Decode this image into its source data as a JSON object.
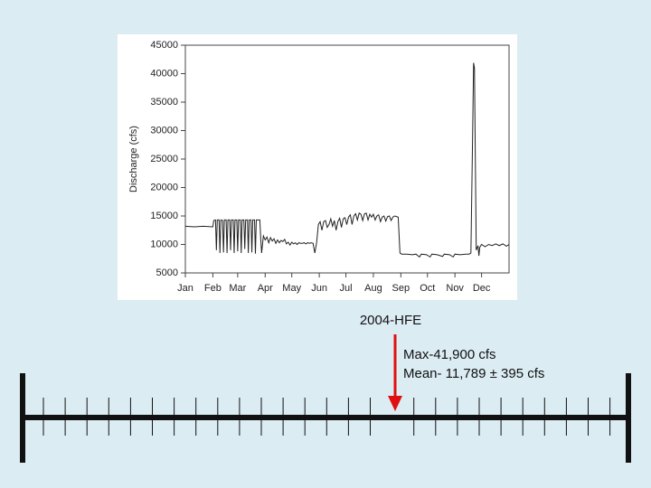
{
  "chart_data": {
    "type": "line",
    "y_label": "Discharge (cfs)",
    "xlim": [
      0,
      365
    ],
    "xticks": [
      {
        "value": 0,
        "label": "Jan"
      },
      {
        "value": 31,
        "label": "Feb"
      },
      {
        "value": 59,
        "label": "Mar"
      },
      {
        "value": 90,
        "label": "Apr"
      },
      {
        "value": 120,
        "label": "May"
      },
      {
        "value": 151,
        "label": "Jun"
      },
      {
        "value": 181,
        "label": "Jul"
      },
      {
        "value": 212,
        "label": "Aug"
      },
      {
        "value": 243,
        "label": "Sep"
      },
      {
        "value": 273,
        "label": "Oct"
      },
      {
        "value": 304,
        "label": "Nov"
      },
      {
        "value": 334,
        "label": "Dec"
      }
    ],
    "ylim": [
      5000,
      45000
    ],
    "yticks": [
      5000,
      10000,
      15000,
      20000,
      25000,
      30000,
      35000,
      40000,
      45000
    ],
    "x": [
      0,
      10,
      20,
      31,
      32,
      34,
      35,
      36,
      38,
      39,
      40,
      42,
      43,
      44,
      46,
      47,
      48,
      50,
      51,
      52,
      54,
      55,
      56,
      58,
      59,
      60,
      62,
      63,
      64,
      66,
      67,
      68,
      70,
      71,
      72,
      74,
      75,
      76,
      78,
      79,
      80,
      82,
      84,
      85,
      86,
      88,
      90,
      92,
      94,
      96,
      98,
      100,
      102,
      104,
      106,
      108,
      110,
      112,
      114,
      116,
      118,
      120,
      122,
      124,
      126,
      128,
      130,
      132,
      134,
      136,
      138,
      140,
      142,
      144,
      146,
      148,
      150,
      152,
      154,
      156,
      158,
      160,
      162,
      164,
      166,
      168,
      170,
      172,
      174,
      176,
      178,
      180,
      182,
      184,
      186,
      188,
      190,
      192,
      194,
      196,
      198,
      200,
      202,
      204,
      206,
      208,
      210,
      212,
      214,
      216,
      218,
      220,
      222,
      224,
      226,
      228,
      230,
      232,
      234,
      236,
      238,
      240,
      242,
      244,
      250,
      256,
      260,
      264,
      266,
      272,
      276,
      278,
      284,
      290,
      292,
      298,
      302,
      304,
      310,
      316,
      320,
      322,
      324,
      325,
      326,
      327,
      328,
      330,
      331,
      332,
      334,
      338,
      342,
      346,
      350,
      354,
      358,
      362,
      365
    ],
    "series": [
      {
        "color": "#222222",
        "values": [
          13200,
          13100,
          13200,
          13100,
          14200,
          14300,
          9000,
          14300,
          14300,
          8500,
          14300,
          14200,
          8600,
          14300,
          14300,
          8500,
          14300,
          14300,
          9000,
          14300,
          14300,
          8500,
          14300,
          14300,
          8800,
          14300,
          14300,
          8500,
          14300,
          14300,
          9200,
          14300,
          14300,
          8500,
          14300,
          14300,
          8600,
          14300,
          14300,
          8400,
          14300,
          14300,
          14300,
          11000,
          8500,
          11500,
          10800,
          11300,
          10300,
          11200,
          10600,
          11000,
          10200,
          10800,
          10300,
          10700,
          10500,
          10900,
          10100,
          10400,
          9900,
          10400,
          10100,
          10300,
          10000,
          10300,
          10200,
          10200,
          10300,
          10100,
          10300,
          10200,
          10300,
          10200,
          8500,
          10300,
          13500,
          14000,
          12500,
          14000,
          14200,
          13000,
          13500,
          14500,
          13200,
          14200,
          12500,
          14000,
          14600,
          13000,
          14500,
          14700,
          13500,
          14800,
          15200,
          13500,
          15000,
          15400,
          14300,
          15500,
          15300,
          14200,
          15400,
          15500,
          14300,
          15300,
          14800,
          15300,
          14300,
          15000,
          15200,
          14000,
          14800,
          15000,
          14100,
          14900,
          15000,
          14200,
          14800,
          15000,
          14900,
          14800,
          8500,
          8300,
          8300,
          8200,
          8300,
          7800,
          8300,
          8200,
          7800,
          8300,
          8200,
          7900,
          8300,
          8200,
          7800,
          8300,
          8200,
          8300,
          8300,
          8500,
          30000,
          41900,
          41000,
          25000,
          9000,
          9800,
          8000,
          9500,
          10000,
          9600,
          10000,
          9800,
          10100,
          9800,
          10100,
          9700,
          10000
        ]
      }
    ]
  },
  "slide": {
    "caption": "2004-HFE",
    "notes": [
      "Max-41,900 cfs",
      "Mean- 11,789 ± 395 cfs"
    ]
  }
}
